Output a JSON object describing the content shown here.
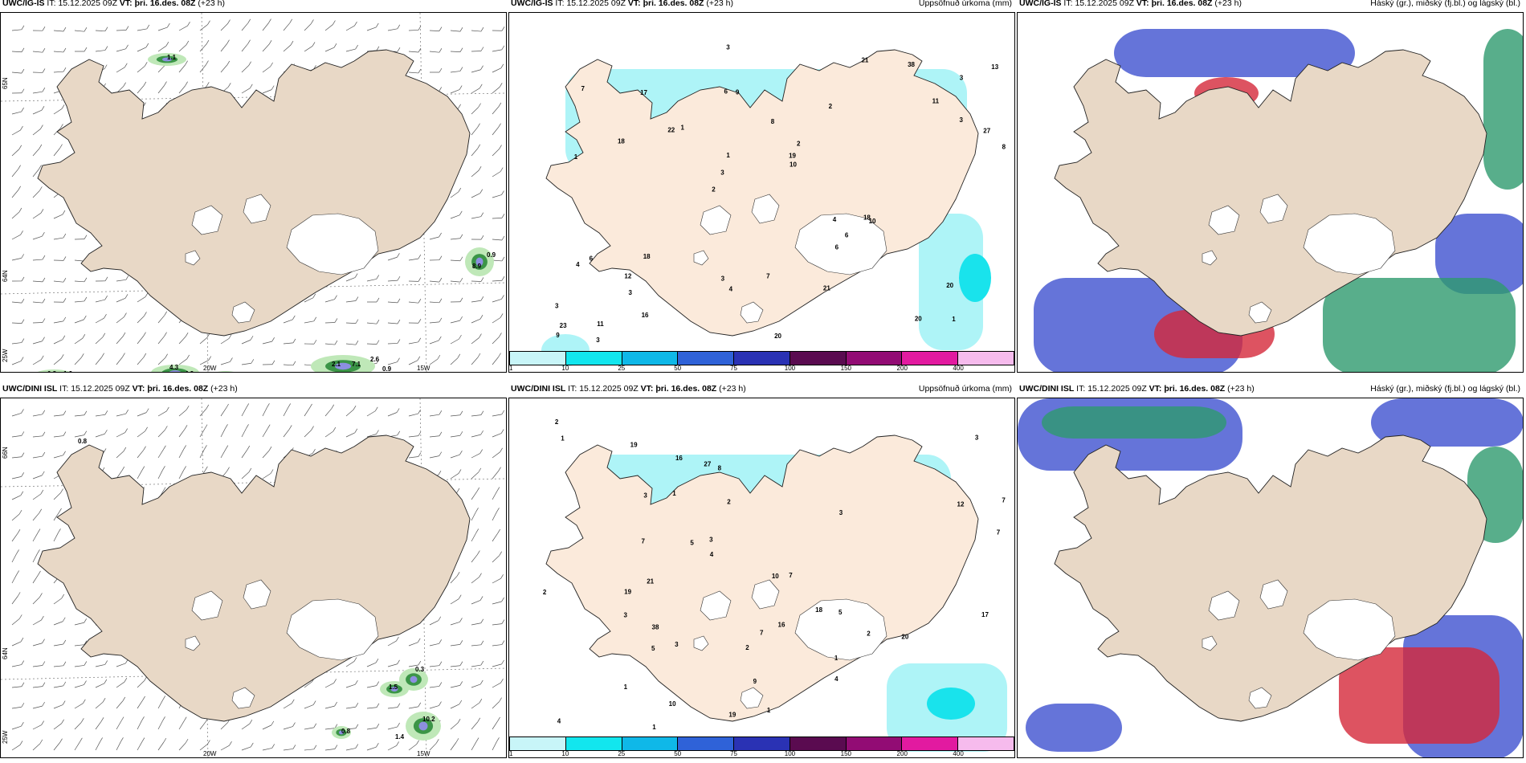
{
  "rows": [
    {
      "id": "igis",
      "model": "UWC/IG-IS",
      "it_label": "IT:",
      "it_value": "15.12.2025 09Z",
      "vt_label": "VT:",
      "vt_value": "þri. 16.des. 08Z",
      "lead": "(+23 h)",
      "wind_values": [
        "1.1",
        "0.8",
        "1.2",
        "4.3",
        "4.3",
        "2.1",
        "7.1",
        "2.6",
        "0.9",
        "0.9",
        "8.9"
      ],
      "precip_values": [
        "1",
        "1",
        "3",
        "2",
        "2",
        "11",
        "6",
        "8",
        "6",
        "1",
        "3",
        "3",
        "9",
        "2",
        "10",
        "7",
        "3",
        "8",
        "4",
        "3",
        "3",
        "3",
        "1",
        "17",
        "21",
        "18",
        "20",
        "20",
        "18",
        "20",
        "22",
        "18",
        "6",
        "16",
        "27",
        "19",
        "23",
        "4",
        "10",
        "4",
        "11",
        "13",
        "6",
        "21",
        "12",
        "3",
        "9",
        "7",
        "38"
      ],
      "cloud_title": "Háský (gr.), miðský (fj.bl.) og lágský (bl.)"
    },
    {
      "id": "dini",
      "model": "UWC/DINI ISL",
      "it_label": "IT:",
      "it_value": "15.12.2025 09Z",
      "vt_label": "VT:",
      "vt_value": "þri. 16.des. 08Z",
      "lead": "(+23 h)",
      "wind_values": [
        "0.8",
        "1.5",
        "0.3",
        "10.2",
        "1.4",
        "0.8"
      ],
      "precip_values": [
        "1",
        "2",
        "2",
        "3",
        "7",
        "1",
        "8",
        "3",
        "4",
        "2",
        "5",
        "7",
        "1",
        "3",
        "7",
        "5",
        "2",
        "1",
        "1",
        "3",
        "7",
        "9",
        "10",
        "21",
        "19",
        "16",
        "38",
        "20",
        "19",
        "27",
        "18",
        "16",
        "12",
        "17",
        "10",
        "7",
        "19",
        "4",
        "4",
        "3",
        "3",
        "1",
        "5",
        "2"
      ],
      "cloud_title": "Háský (gr.), miðský (fj.bl.) og lágský (bl.)"
    }
  ],
  "precip": {
    "title": "Uppsöfnuð úrkoma (mm)",
    "colorbar_ticks": [
      "1",
      "10",
      "25",
      "50",
      "75",
      "100",
      "150",
      "200",
      "400"
    ],
    "colorbar_colors": [
      "#c8f5f8",
      "#12e6ee",
      "#0fb8e8",
      "#2f62d8",
      "#2a32b4",
      "#5a0b50",
      "#920c74",
      "#e21aa0",
      "#f6bbed"
    ]
  },
  "axes": {
    "lat_labels": [
      "65N",
      "64N",
      "66N"
    ],
    "lon_labels": [
      "20W",
      "15W",
      "25W"
    ]
  },
  "colors": {
    "land": "#e8d8c6",
    "land_precip": "#fbeadb",
    "precip_light": "#aef4f7",
    "precip_mid": "#19e3ec",
    "cloud_high": "#3f51cf",
    "cloud_mid": "#d4283a",
    "cloud_low": "#2e9a6e",
    "wind_green": "#0f7a22"
  }
}
